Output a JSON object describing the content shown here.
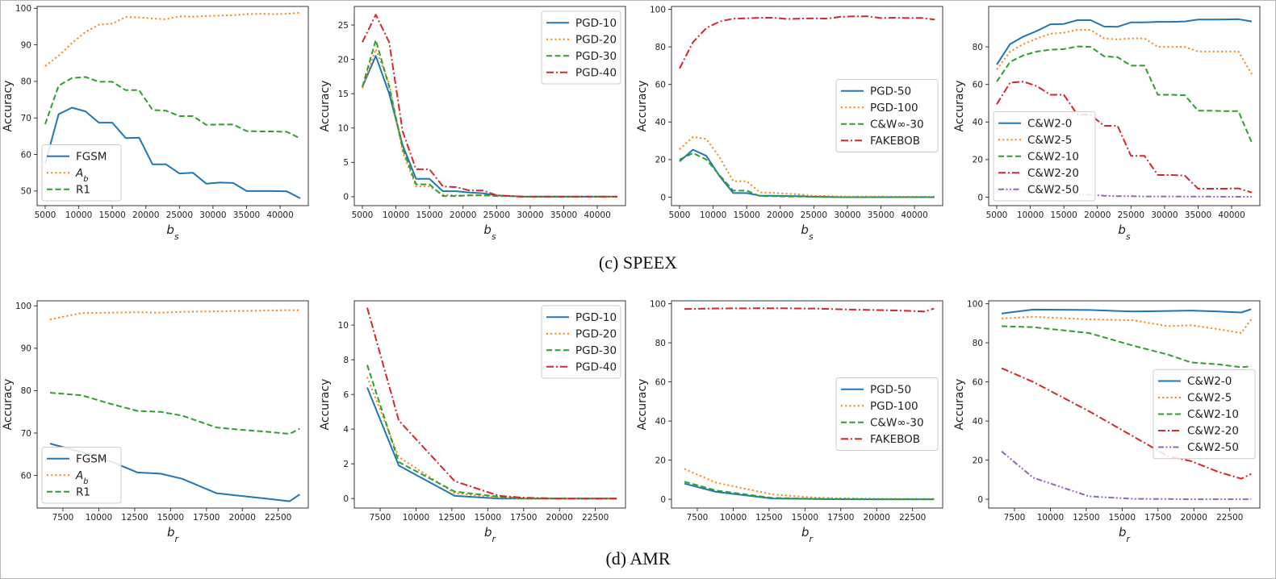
{
  "captions": {
    "top": "(c)  SPEEX",
    "bottom": "(d)  AMR"
  },
  "colors": {
    "blue": "#1f77b4",
    "orange": "#ff7f0e",
    "green": "#2ca02c",
    "red": "#d62728",
    "purple": "#9467bd"
  },
  "chart_data": [
    {
      "id": "speex-fgsm",
      "type": "line",
      "xlabel": "b",
      "xlabel_sub": "s",
      "ylabel": "Accuracy",
      "xlim": [
        3800,
        44200
      ],
      "ylim": [
        46,
        100.5
      ],
      "xticks": [
        5000,
        10000,
        15000,
        20000,
        25000,
        30000,
        35000,
        40000
      ],
      "yticks": [
        50,
        60,
        70,
        80,
        90,
        100
      ],
      "legend_position": "lower-left",
      "x": [
        5000,
        7000,
        9000,
        11000,
        13000,
        15000,
        17000,
        19000,
        21000,
        23000,
        25000,
        27000,
        29000,
        31000,
        33000,
        35000,
        37000,
        39000,
        41000,
        43000
      ],
      "series": [
        {
          "name": "FGSM",
          "style": "solid",
          "color": "#1f77b4",
          "values": [
            57.5,
            71.0,
            72.8,
            71.8,
            68.7,
            68.7,
            64.5,
            64.6,
            57.3,
            57.3,
            54.8,
            55.0,
            52.0,
            52.3,
            52.2,
            50.0,
            50.0,
            50.0,
            49.9,
            48.0
          ]
        },
        {
          "name": "A",
          "name_sub": "b",
          "style": "dotted",
          "color": "#ff7f0e",
          "values": [
            84.2,
            87.0,
            90.5,
            93.5,
            95.5,
            95.8,
            97.6,
            97.5,
            97.2,
            97.0,
            97.8,
            97.7,
            97.9,
            98.0,
            98.1,
            98.4,
            98.5,
            98.4,
            98.5,
            98.8
          ]
        },
        {
          "name": "R1",
          "style": "dashed",
          "color": "#2ca02c",
          "values": [
            68.3,
            78.8,
            80.9,
            81.2,
            79.9,
            79.9,
            77.6,
            77.6,
            72.2,
            72.0,
            70.5,
            70.5,
            68.1,
            68.2,
            68.2,
            66.4,
            66.3,
            66.3,
            66.2,
            64.4
          ]
        }
      ]
    },
    {
      "id": "speex-pgd",
      "type": "line",
      "xlabel": "b",
      "xlabel_sub": "s",
      "ylabel": "Accuracy",
      "xlim": [
        3800,
        44200
      ],
      "ylim": [
        -1.3,
        27.7
      ],
      "xticks": [
        5000,
        10000,
        15000,
        20000,
        25000,
        30000,
        35000,
        40000
      ],
      "yticks": [
        0,
        5,
        10,
        15,
        20,
        25
      ],
      "legend_position": "upper-right",
      "x": [
        5000,
        7000,
        9000,
        11000,
        13000,
        15000,
        17000,
        19000,
        21000,
        23000,
        25000,
        27000,
        29000,
        31000,
        33000,
        35000,
        37000,
        39000,
        41000,
        43000
      ],
      "series": [
        {
          "name": "PGD-10",
          "style": "solid",
          "color": "#1f77b4",
          "values": [
            16.0,
            20.5,
            15.0,
            7.5,
            2.6,
            2.6,
            0.8,
            0.8,
            0.6,
            0.5,
            0.2,
            0.1,
            0.0,
            0.0,
            0.0,
            0.0,
            0.0,
            0.0,
            0.0,
            0.0
          ]
        },
        {
          "name": "PGD-20",
          "style": "dotted",
          "color": "#ff7f0e",
          "values": [
            15.8,
            21.5,
            16.5,
            6.5,
            1.5,
            1.5,
            0.3,
            0.2,
            0.2,
            0.2,
            0.1,
            0.1,
            0.0,
            0.0,
            0.0,
            0.0,
            0.0,
            0.0,
            0.0,
            0.0
          ]
        },
        {
          "name": "PGD-30",
          "style": "dashed",
          "color": "#2ca02c",
          "values": [
            16.0,
            22.8,
            16.0,
            7.0,
            1.8,
            1.8,
            0.1,
            0.1,
            0.2,
            0.2,
            0.1,
            0.1,
            0.0,
            0.0,
            0.0,
            0.0,
            0.0,
            0.0,
            0.0,
            0.0
          ]
        },
        {
          "name": "PGD-40",
          "style": "dashdot",
          "color": "#d62728",
          "values": [
            22.5,
            26.5,
            22.5,
            9.5,
            4.0,
            4.0,
            1.5,
            1.4,
            0.9,
            0.9,
            0.2,
            0.1,
            0.0,
            0.0,
            0.0,
            0.0,
            0.0,
            0.0,
            0.0,
            0.0
          ]
        }
      ]
    },
    {
      "id": "speex-pgd-long",
      "type": "line",
      "xlabel": "b",
      "xlabel_sub": "s",
      "ylabel": "Accuracy",
      "xlim": [
        3800,
        44200
      ],
      "ylim": [
        -4.5,
        101.5
      ],
      "xticks": [
        5000,
        10000,
        15000,
        20000,
        25000,
        30000,
        35000,
        40000
      ],
      "yticks": [
        0,
        20,
        40,
        60,
        80,
        100
      ],
      "legend_position": "center-right",
      "x": [
        5000,
        7000,
        9000,
        11000,
        13000,
        15000,
        17000,
        19000,
        21000,
        23000,
        25000,
        27000,
        29000,
        31000,
        33000,
        35000,
        37000,
        39000,
        41000,
        43000
      ],
      "series": [
        {
          "name": "PGD-50",
          "style": "solid",
          "color": "#1f77b4",
          "values": [
            19.0,
            25.3,
            22.0,
            11.0,
            2.2,
            2.2,
            0.8,
            0.8,
            0.6,
            0.5,
            0.2,
            0.1,
            0.0,
            0.0,
            0.0,
            0.0,
            0.0,
            0.0,
            0.0,
            0.0
          ]
        },
        {
          "name": "PGD-100",
          "style": "dotted",
          "color": "#ff7f0e",
          "values": [
            25.5,
            32.0,
            31.0,
            21.0,
            8.5,
            8.5,
            2.5,
            2.3,
            1.8,
            1.5,
            0.8,
            0.6,
            0.4,
            0.3,
            0.3,
            0.3,
            0.2,
            0.2,
            0.2,
            0.2
          ]
        },
        {
          "name": "C&W∞-30",
          "style": "dashed",
          "color": "#2ca02c",
          "values": [
            20.0,
            23.5,
            20.0,
            11.5,
            3.5,
            3.5,
            0.5,
            0.5,
            0.4,
            0.3,
            0.2,
            0.1,
            0.0,
            0.0,
            0.0,
            0.0,
            0.0,
            0.0,
            0.0,
            0.0
          ]
        },
        {
          "name": "FAKEBOB",
          "style": "dashdot",
          "color": "#d62728",
          "values": [
            68.5,
            82.5,
            90.0,
            93.5,
            95.0,
            95.2,
            95.5,
            95.5,
            94.8,
            95.0,
            95.2,
            95.0,
            96.0,
            96.2,
            96.2,
            95.3,
            95.5,
            95.3,
            95.4,
            94.5
          ]
        }
      ]
    },
    {
      "id": "speex-cw2",
      "type": "line",
      "xlabel": "b",
      "xlabel_sub": "s",
      "ylabel": "Accuracy",
      "xlim": [
        3800,
        44200
      ],
      "ylim": [
        -4.5,
        101.5
      ],
      "xticks": [
        5000,
        10000,
        15000,
        20000,
        25000,
        30000,
        35000,
        40000
      ],
      "yticks": [
        0,
        20,
        40,
        60,
        80
      ],
      "legend_position": "lower-left",
      "x": [
        5000,
        7000,
        9000,
        11000,
        13000,
        15000,
        17000,
        19000,
        21000,
        23000,
        25000,
        27000,
        29000,
        31000,
        33000,
        35000,
        37000,
        39000,
        41000,
        43000
      ],
      "series": [
        {
          "name": "C&W2-0",
          "style": "solid",
          "color": "#1f77b4",
          "values": [
            70.5,
            81.5,
            85.5,
            88.5,
            92.0,
            92.2,
            94.2,
            94.2,
            90.8,
            90.7,
            93.0,
            93.0,
            93.3,
            93.3,
            93.5,
            94.5,
            94.5,
            94.6,
            94.7,
            93.5
          ]
        },
        {
          "name": "C&W2-5",
          "style": "dotted",
          "color": "#ff7f0e",
          "values": [
            68.0,
            77.5,
            81.5,
            84.5,
            87.0,
            87.5,
            89.0,
            89.0,
            84.5,
            84.0,
            84.5,
            84.5,
            80.0,
            80.0,
            80.0,
            77.5,
            77.5,
            77.5,
            77.5,
            65.5
          ]
        },
        {
          "name": "C&W2-10",
          "style": "dashed",
          "color": "#2ca02c",
          "values": [
            61.5,
            72.0,
            75.5,
            77.5,
            78.5,
            78.8,
            80.2,
            80.0,
            75.0,
            74.5,
            70.0,
            70.0,
            54.5,
            54.5,
            54.3,
            46.0,
            46.0,
            45.8,
            45.8,
            29.0
          ]
        },
        {
          "name": "C&W2-20",
          "style": "dashdot",
          "color": "#d62728",
          "values": [
            49.5,
            61.0,
            61.5,
            59.0,
            54.5,
            54.5,
            44.0,
            43.8,
            38.0,
            38.0,
            22.0,
            22.0,
            11.8,
            11.8,
            11.5,
            4.5,
            4.5,
            4.5,
            4.7,
            2.5
          ]
        },
        {
          "name": "C&W2-50",
          "style": "dashdotdot",
          "color": "#9467bd",
          "values": [
            4.0,
            3.5,
            3.0,
            2.5,
            2.0,
            2.0,
            1.5,
            1.3,
            0.8,
            0.5,
            0.5,
            0.4,
            0.4,
            0.4,
            0.3,
            0.3,
            0.3,
            0.2,
            0.2,
            0.2
          ]
        }
      ]
    },
    {
      "id": "amr-fgsm",
      "type": "line",
      "xlabel": "b",
      "xlabel_sub": "r",
      "ylabel": "Accuracy",
      "xlim": [
        5700,
        24600
      ],
      "ylim": [
        52.3,
        101.2
      ],
      "xticks": [
        7500,
        10000,
        12500,
        15000,
        17500,
        20000,
        22500
      ],
      "yticks": [
        60,
        70,
        80,
        90,
        100
      ],
      "legend_position": "lower-left",
      "x": [
        6600,
        8800,
        10700,
        12700,
        14300,
        15800,
        18200,
        19800,
        21700,
        23300,
        24000
      ],
      "series": [
        {
          "name": "FGSM",
          "style": "solid",
          "color": "#1f77b4",
          "values": [
            67.5,
            65.5,
            63.5,
            60.7,
            60.4,
            59.2,
            55.8,
            55.2,
            54.5,
            53.9,
            55.5
          ]
        },
        {
          "name": "A",
          "name_sub": "b",
          "style": "dotted",
          "color": "#ff7f0e",
          "values": [
            96.8,
            98.3,
            98.4,
            98.5,
            98.4,
            98.6,
            98.7,
            98.8,
            98.9,
            99.0,
            99.0
          ]
        },
        {
          "name": "R1",
          "style": "dashed",
          "color": "#2ca02c",
          "values": [
            79.5,
            78.9,
            77.0,
            75.2,
            75.0,
            74.1,
            71.3,
            70.8,
            70.3,
            69.8,
            71.0
          ]
        }
      ]
    },
    {
      "id": "amr-pgd",
      "type": "line",
      "xlabel": "b",
      "xlabel_sub": "r",
      "ylabel": "Accuracy",
      "xlim": [
        5700,
        24600
      ],
      "ylim": [
        -0.55,
        11.4
      ],
      "xticks": [
        7500,
        10000,
        12500,
        15000,
        17500,
        20000,
        22500
      ],
      "yticks": [
        0,
        2,
        4,
        6,
        8,
        10
      ],
      "legend_position": "upper-right",
      "x": [
        6600,
        8800,
        12700,
        15800,
        17500,
        19800,
        21700,
        24000
      ],
      "series": [
        {
          "name": "PGD-10",
          "style": "solid",
          "color": "#1f77b4",
          "values": [
            6.4,
            1.9,
            0.15,
            0.0,
            0.0,
            0.0,
            0.0,
            0.0
          ]
        },
        {
          "name": "PGD-20",
          "style": "dotted",
          "color": "#ff7f0e",
          "values": [
            7.0,
            2.4,
            0.3,
            0.05,
            0.0,
            0.0,
            0.0,
            0.0
          ]
        },
        {
          "name": "PGD-30",
          "style": "dashed",
          "color": "#2ca02c",
          "values": [
            7.7,
            2.1,
            0.4,
            0.1,
            0.0,
            0.0,
            0.0,
            0.0
          ]
        },
        {
          "name": "PGD-40",
          "style": "dashdot",
          "color": "#d62728",
          "values": [
            11.0,
            4.5,
            1.0,
            0.15,
            0.05,
            0.0,
            0.0,
            0.0
          ]
        }
      ]
    },
    {
      "id": "amr-pgd-long",
      "type": "line",
      "xlabel": "b",
      "xlabel_sub": "r",
      "ylabel": "Accuracy",
      "xlim": [
        5700,
        24600
      ],
      "ylim": [
        -4.5,
        101.5
      ],
      "xticks": [
        7500,
        10000,
        12500,
        15000,
        17500,
        20000,
        22500
      ],
      "yticks": [
        0,
        20,
        40,
        60,
        80,
        100
      ],
      "legend_position": "center-right",
      "x": [
        6600,
        8800,
        12700,
        15800,
        18200,
        19800,
        21700,
        23300,
        24000
      ],
      "series": [
        {
          "name": "PGD-50",
          "style": "solid",
          "color": "#1f77b4",
          "values": [
            8.0,
            3.8,
            0.4,
            0.1,
            0.0,
            0.0,
            0.0,
            0.0,
            0.0
          ]
        },
        {
          "name": "PGD-100",
          "style": "dotted",
          "color": "#ff7f0e",
          "values": [
            15.5,
            8.5,
            2.5,
            0.8,
            0.4,
            0.3,
            0.2,
            0.2,
            0.2
          ]
        },
        {
          "name": "C&W∞-30",
          "style": "dashed",
          "color": "#2ca02c",
          "values": [
            9.0,
            4.5,
            0.7,
            0.2,
            0.1,
            0.0,
            0.0,
            0.0,
            0.0
          ]
        },
        {
          "name": "FAKEBOB",
          "style": "dashdot",
          "color": "#d62728",
          "values": [
            97.3,
            97.6,
            97.7,
            97.5,
            97.0,
            96.8,
            96.5,
            96.0,
            97.5
          ]
        }
      ]
    },
    {
      "id": "amr-cw2",
      "type": "line",
      "xlabel": "b",
      "xlabel_sub": "r",
      "ylabel": "Accuracy",
      "xlim": [
        5700,
        24600
      ],
      "ylim": [
        -4.5,
        101.5
      ],
      "xticks": [
        7500,
        10000,
        12500,
        15000,
        17500,
        20000,
        22500
      ],
      "yticks": [
        0,
        20,
        40,
        60,
        80,
        100
      ],
      "legend_position": "center-right",
      "x": [
        6600,
        8800,
        12700,
        15800,
        18200,
        19800,
        21700,
        23300,
        24000
      ],
      "series": [
        {
          "name": "C&W2-0",
          "style": "solid",
          "color": "#1f77b4",
          "values": [
            95.0,
            97.0,
            96.8,
            96.0,
            96.3,
            96.5,
            96.0,
            95.5,
            97.2
          ]
        },
        {
          "name": "C&W2-5",
          "style": "dotted",
          "color": "#ff7f0e",
          "values": [
            92.5,
            93.3,
            92.0,
            91.5,
            88.5,
            89.0,
            87.0,
            85.0,
            92.0
          ]
        },
        {
          "name": "C&W2-10",
          "style": "dashed",
          "color": "#2ca02c",
          "values": [
            88.5,
            88.0,
            85.0,
            78.5,
            74.0,
            70.0,
            69.0,
            67.5,
            68.0
          ]
        },
        {
          "name": "C&W2-20",
          "style": "dashdot",
          "color": "#d62728",
          "values": [
            67.0,
            60.0,
            45.0,
            32.0,
            22.0,
            19.5,
            14.0,
            10.5,
            13.0
          ]
        },
        {
          "name": "C&W2-50",
          "style": "dashdotdot",
          "color": "#9467bd",
          "values": [
            24.5,
            11.0,
            1.5,
            0.2,
            0.1,
            0.0,
            0.0,
            0.0,
            0.0
          ]
        }
      ]
    }
  ]
}
